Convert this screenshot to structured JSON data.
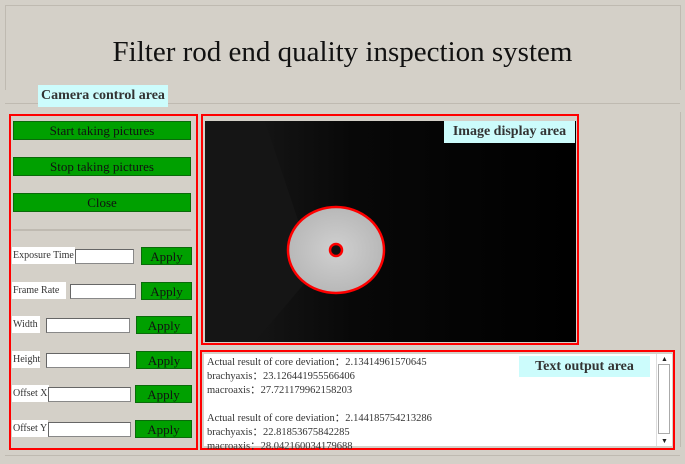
{
  "title": "Filter rod end quality inspection system",
  "camera_panel": {
    "label": "Camera control area",
    "buttons": {
      "start": "Start taking pictures",
      "stop": "Stop taking pictures",
      "close": "Close"
    },
    "params": [
      {
        "label": "Exposure Time",
        "value": "",
        "apply": "Apply"
      },
      {
        "label": "Frame Rate",
        "value": "",
        "apply": "Apply"
      },
      {
        "label": "Width",
        "value": "",
        "apply": "Apply"
      },
      {
        "label": "Height",
        "value": "",
        "apply": "Apply"
      },
      {
        "label": "Offset X",
        "value": "",
        "apply": "Apply"
      },
      {
        "label": "Offset Y",
        "value": "",
        "apply": "Apply"
      }
    ]
  },
  "image_panel": {
    "label": "Image display area"
  },
  "text_panel": {
    "label": "Text output area",
    "lines": [
      "Actual result of core deviation：2.13414961570645",
      "brachyaxis：23.126441955566406",
      "macroaxis：27.721179962158203",
      "",
      "Actual result of core deviation：2.144185754213286",
      "brachyaxis：22.81853675842285",
      "macroaxis：28.042160034179688"
    ]
  },
  "colors": {
    "accent_button": "#00a000",
    "highlight_border": "#ff0000",
    "label_bg": "#ccfcfc",
    "window_bg": "#d4d0c8"
  }
}
